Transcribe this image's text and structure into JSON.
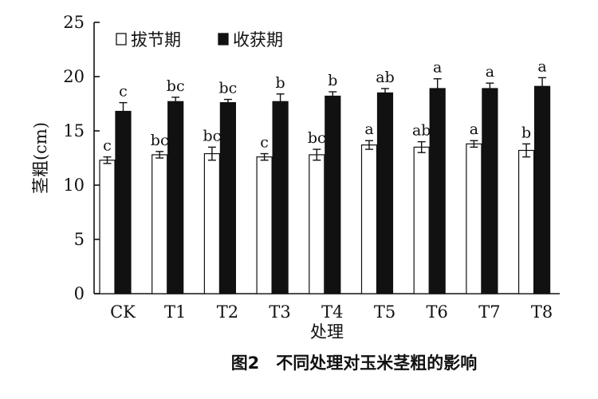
{
  "chart_data": {
    "type": "bar",
    "caption": "图2　不同处理对玉米茎粗的影响",
    "xlabel": "处理",
    "ylabel": "茎粗(cm)",
    "ylim": [
      0,
      25
    ],
    "yticks": [
      0,
      5,
      10,
      15,
      20,
      25
    ],
    "grid": false,
    "legend_position": "top-left",
    "categories": [
      "CK",
      "T1",
      "T2",
      "T3",
      "T4",
      "T5",
      "T6",
      "T7",
      "T8"
    ],
    "series": [
      {
        "name": "拔节期",
        "color": "#ffffff",
        "values": [
          12.3,
          12.8,
          12.9,
          12.6,
          12.8,
          13.7,
          13.5,
          13.8,
          13.2
        ],
        "errors": [
          0.3,
          0.3,
          0.6,
          0.3,
          0.5,
          0.4,
          0.5,
          0.3,
          0.6
        ],
        "letters": [
          "c",
          "bc",
          "bc",
          "c",
          "bc",
          "a",
          "ab",
          "a",
          "b"
        ]
      },
      {
        "name": "收获期",
        "color": "#111111",
        "values": [
          16.8,
          17.7,
          17.6,
          17.7,
          18.2,
          18.5,
          18.9,
          18.9,
          19.1
        ],
        "errors": [
          0.8,
          0.4,
          0.3,
          0.7,
          0.4,
          0.4,
          0.9,
          0.5,
          0.8
        ],
        "letters": [
          "c",
          "bc",
          "bc",
          "b",
          "b",
          "ab",
          "a",
          "a",
          "a"
        ]
      }
    ]
  }
}
